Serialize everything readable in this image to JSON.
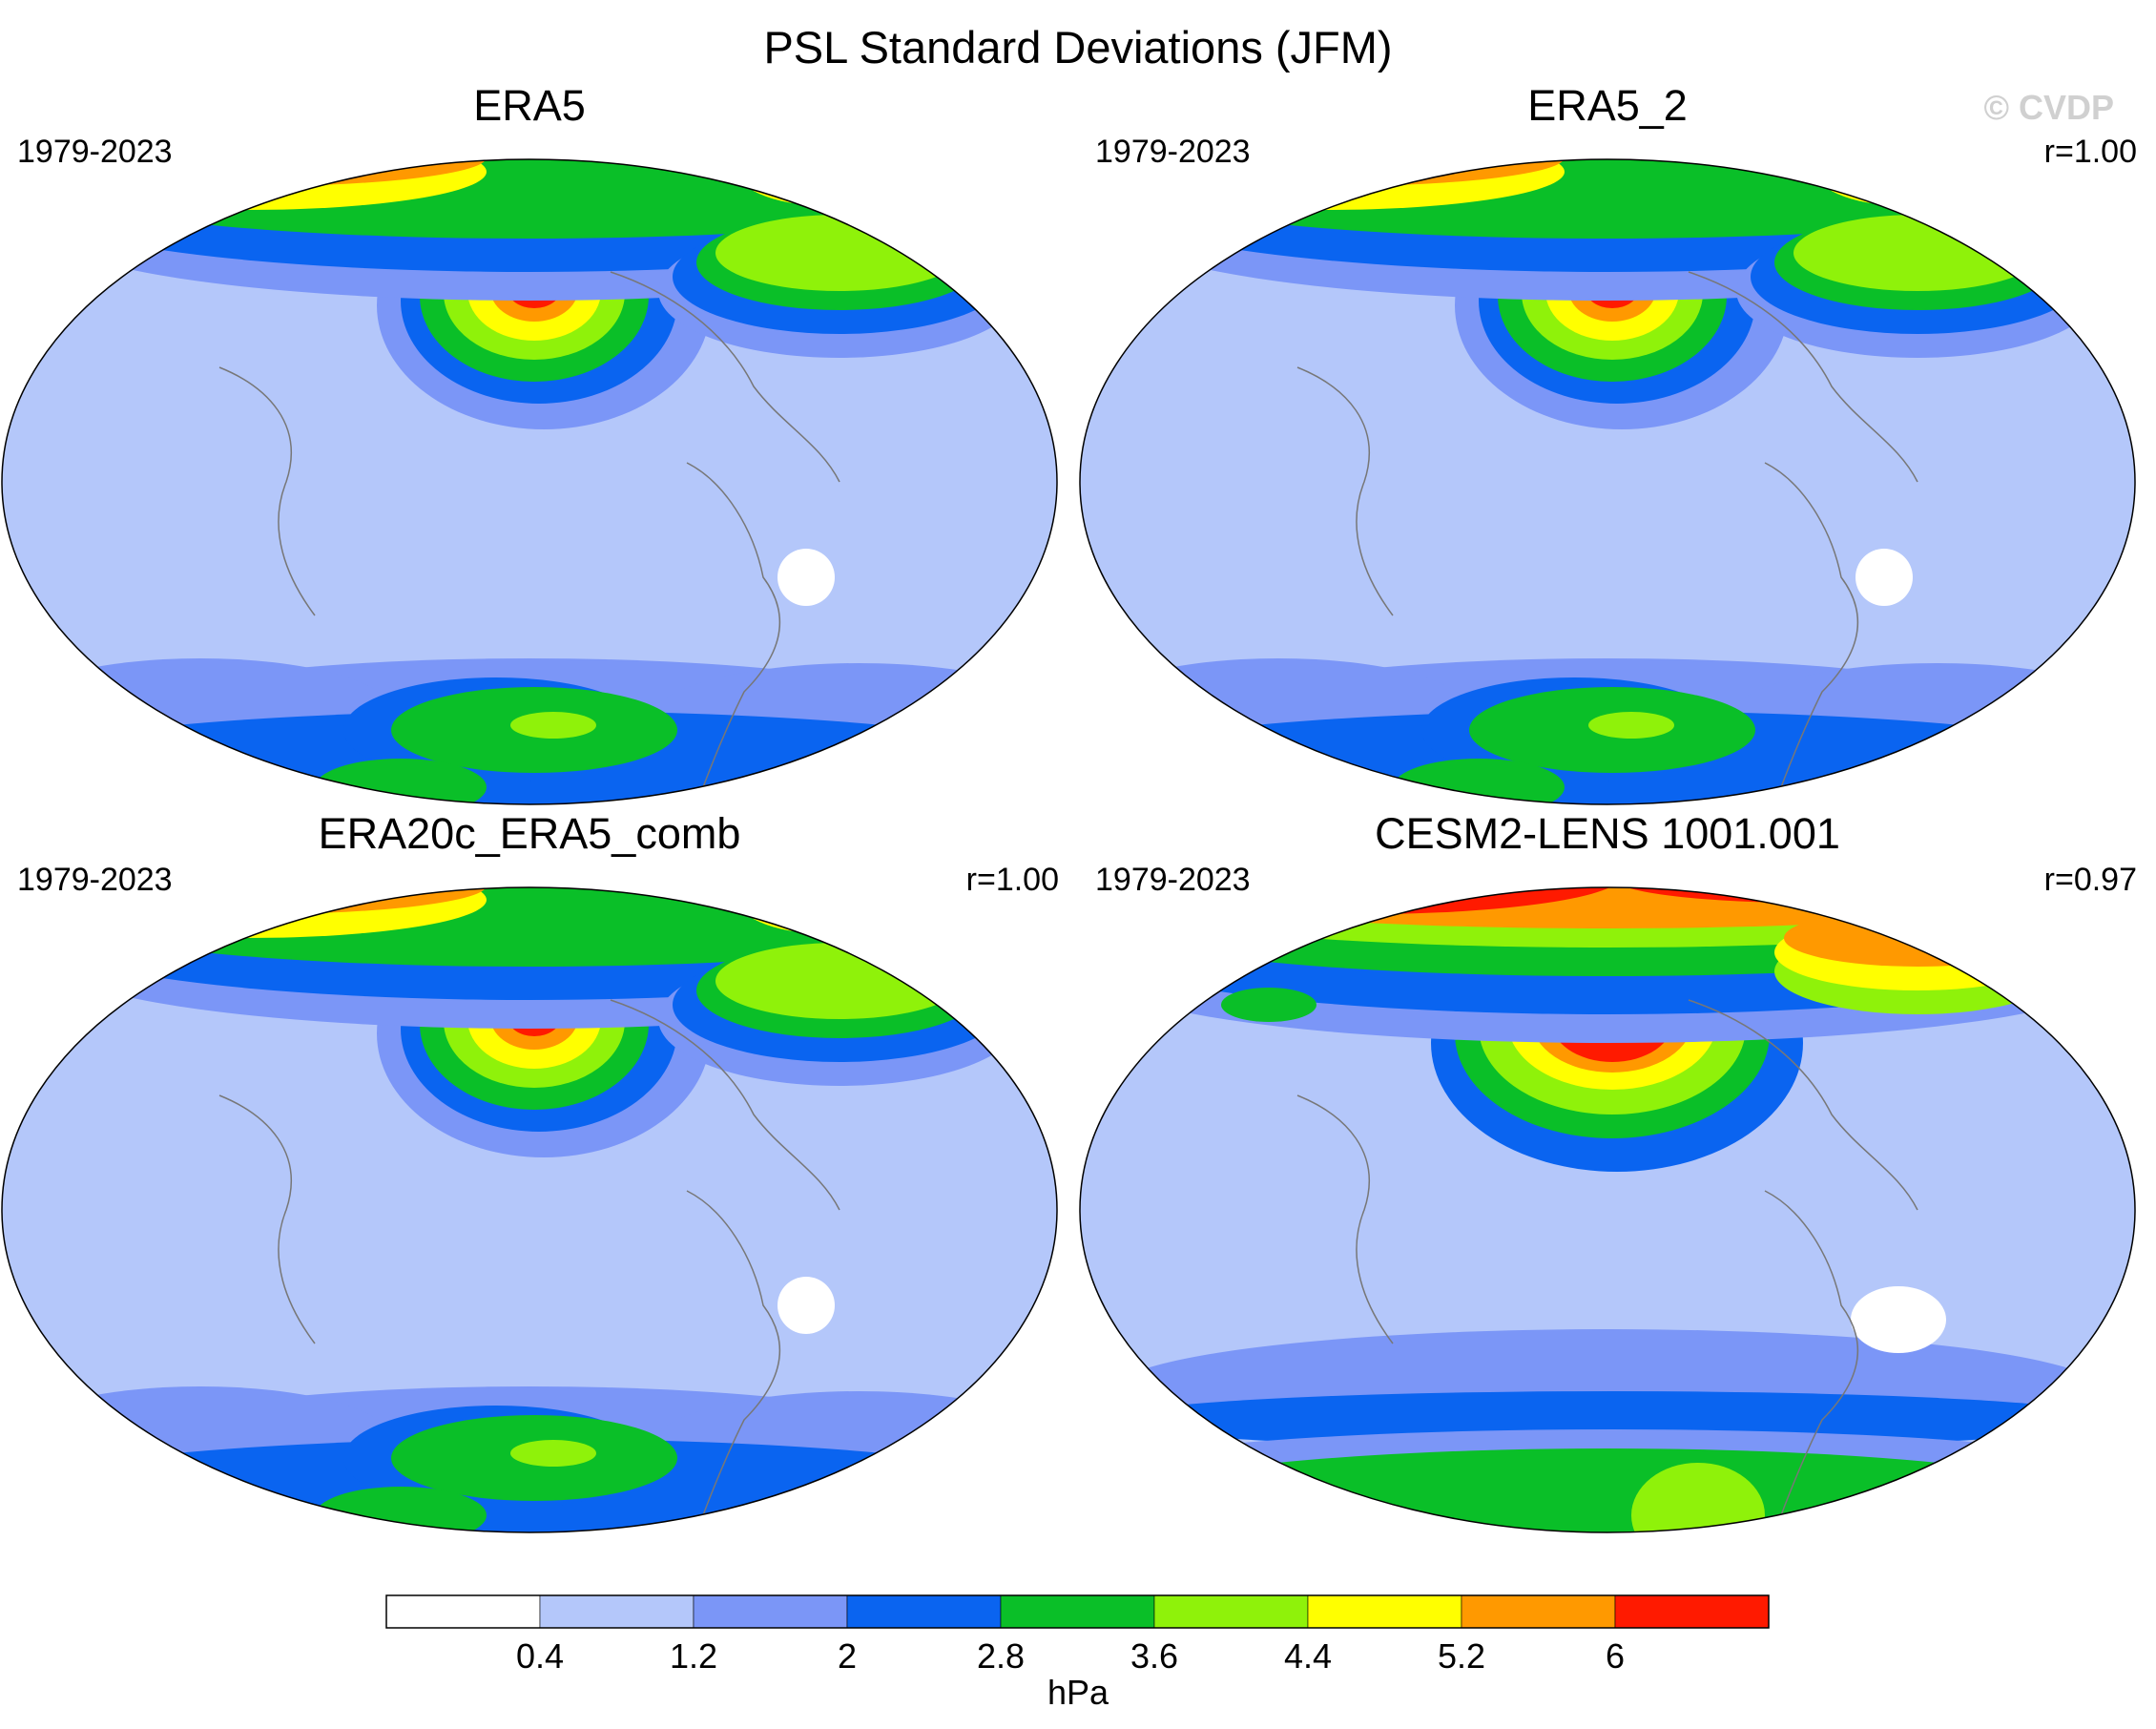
{
  "title": "PSL Standard Deviations (JFM)",
  "credit": "© CVDP",
  "panels": [
    {
      "title": "ERA5",
      "period": "1979-2023",
      "corr": ""
    },
    {
      "title": "ERA5_2",
      "period": "1979-2023",
      "corr": "r=1.00"
    },
    {
      "title": "ERA20c_ERA5_comb",
      "period": "1979-2023",
      "corr": "r=1.00"
    },
    {
      "title": "CESM2-LENS 1001.001",
      "period": "1979-2023",
      "corr": "r=0.97"
    }
  ],
  "colorbar": {
    "unit": "hPa",
    "levels": [
      "0.4",
      "1.2",
      "2",
      "2.8",
      "3.6",
      "4.4",
      "5.2",
      "6"
    ],
    "colors": [
      "#ffffff",
      "#b4c7fa",
      "#7b96f7",
      "#0a64f0",
      "#0abf28",
      "#8ff20a",
      "#ffff00",
      "#ff9900",
      "#ff1a00"
    ]
  }
}
